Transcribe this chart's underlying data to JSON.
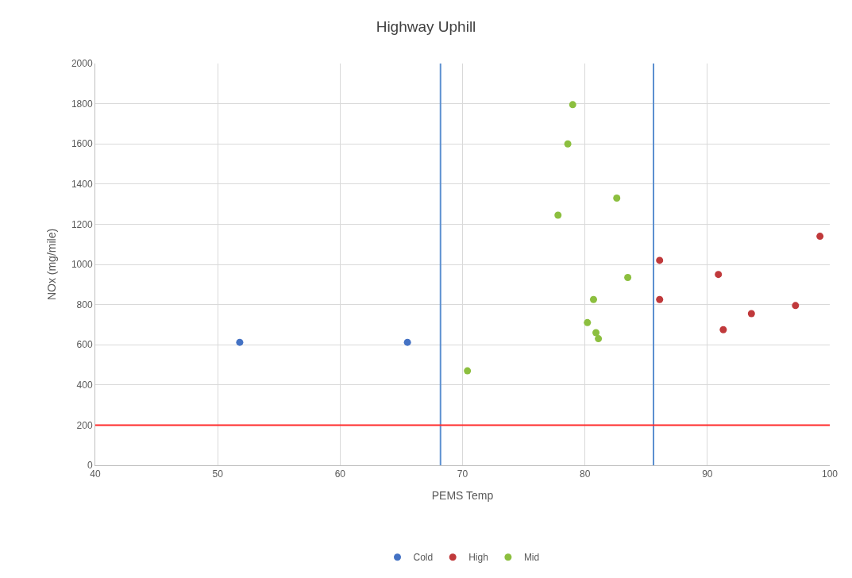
{
  "chart_data": {
    "type": "scatter",
    "title": "Highway Uphill",
    "xlabel": "PEMS Temp",
    "ylabel": "NOx (mg/mile)",
    "xlim": [
      40,
      100
    ],
    "xticks": [
      40,
      50,
      60,
      70,
      80,
      90,
      100
    ],
    "ylim": [
      0,
      2000
    ],
    "yticks": [
      0,
      200,
      400,
      600,
      800,
      1000,
      1200,
      1400,
      1600,
      1800,
      2000
    ],
    "grid": true,
    "legend": "bottom",
    "marker": "circle",
    "series": [
      {
        "name": "Cold",
        "color": "#4472c4",
        "x": [
          51.8,
          65.5
        ],
        "values": [
          612,
          612
        ]
      },
      {
        "name": "High",
        "color": "#c0393b",
        "x": [
          86.1,
          86.1,
          90.9,
          91.3,
          93.6,
          97.2,
          99.2
        ],
        "values": [
          1020,
          825,
          950,
          675,
          755,
          795,
          1140
        ]
      },
      {
        "name": "Mid",
        "color": "#8cbf3f",
        "x": [
          70.4,
          77.8,
          78.6,
          79.0,
          80.2,
          80.7,
          80.9,
          81.1,
          82.6,
          83.5
        ],
        "values": [
          470,
          1245,
          1600,
          1795,
          710,
          825,
          660,
          630,
          1330,
          935
        ]
      }
    ],
    "ref_lines": [
      {
        "axis": "x",
        "value": 68.2,
        "color": "#5b8fd0"
      },
      {
        "axis": "x",
        "value": 85.6,
        "color": "#5b8fd0"
      },
      {
        "axis": "y",
        "value": 200,
        "color": "#ff2a2a"
      }
    ]
  }
}
